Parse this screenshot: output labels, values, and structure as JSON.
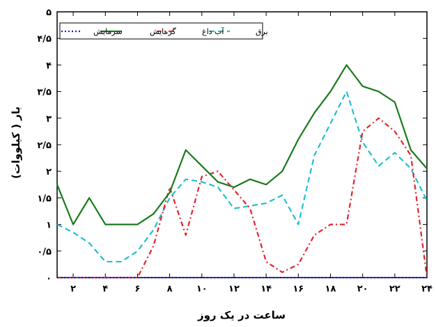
{
  "chart_data": {
    "type": "line",
    "xlabel": "ساعت در یک روز",
    "ylabel": "بار ( کیلووات)",
    "xlim": [
      1,
      24
    ],
    "ylim": [
      0,
      5
    ],
    "x_ticks": [
      2,
      4,
      6,
      8,
      10,
      12,
      14,
      16,
      18,
      20,
      22,
      24
    ],
    "x_tick_labels": [
      "۲",
      "۴",
      "۶",
      "۸",
      "۱۰",
      "۱۲",
      "۱۴",
      "۱۶",
      "۱۸",
      "۲۰",
      "۲۲",
      "۲۴"
    ],
    "y_ticks": [
      0,
      0.5,
      1,
      1.5,
      2,
      2.5,
      3,
      3.5,
      4,
      4.5,
      5
    ],
    "y_tick_labels": [
      "۰",
      "۰/۵",
      "۱",
      "۱/۵",
      "۲",
      "۲/۵",
      "۳",
      "۳/۵",
      "۴",
      "۴/۵",
      "۵"
    ],
    "grid": false,
    "legend_position": "top",
    "x": [
      1,
      2,
      3,
      4,
      5,
      6,
      7,
      8,
      9,
      10,
      11,
      12,
      13,
      14,
      15,
      16,
      17,
      18,
      19,
      20,
      21,
      22,
      23,
      24
    ],
    "series": [
      {
        "name": "برق",
        "color": "#22bfcf",
        "dash": "dashed",
        "values": [
          1.0,
          0.85,
          0.65,
          0.3,
          0.3,
          0.5,
          0.9,
          1.5,
          1.85,
          1.8,
          1.7,
          1.3,
          1.35,
          1.4,
          1.55,
          1.0,
          2.3,
          2.9,
          3.5,
          2.55,
          2.1,
          2.35,
          2.05,
          1.45
        ]
      },
      {
        "name": "آب داغ",
        "color": "#e8222a",
        "dash": "dashdot",
        "values": [
          0,
          0,
          0,
          0,
          0,
          0,
          0.6,
          1.7,
          0.8,
          1.9,
          2.0,
          1.65,
          1.3,
          0.3,
          0.1,
          0.25,
          0.8,
          1.0,
          1.0,
          2.75,
          3.0,
          2.75,
          2.3,
          0
        ]
      },
      {
        "name": "گرمایش",
        "color": "#1a7a1a",
        "dash": "solid",
        "values": [
          1.75,
          1.0,
          1.5,
          1.0,
          1.0,
          1.0,
          1.2,
          1.6,
          2.4,
          2.1,
          1.8,
          1.7,
          1.85,
          1.75,
          2.0,
          2.6,
          3.1,
          3.5,
          4.0,
          3.6,
          3.5,
          3.3,
          2.4,
          2.05
        ]
      },
      {
        "name": "سرمایش",
        "color": "#1a1aee",
        "dash": "dotted",
        "values": [
          0,
          0,
          0,
          0,
          0,
          0,
          0,
          0,
          0,
          0,
          0,
          0,
          0,
          0,
          0,
          0,
          0,
          0,
          0,
          0,
          0,
          0,
          0,
          0
        ]
      }
    ]
  }
}
